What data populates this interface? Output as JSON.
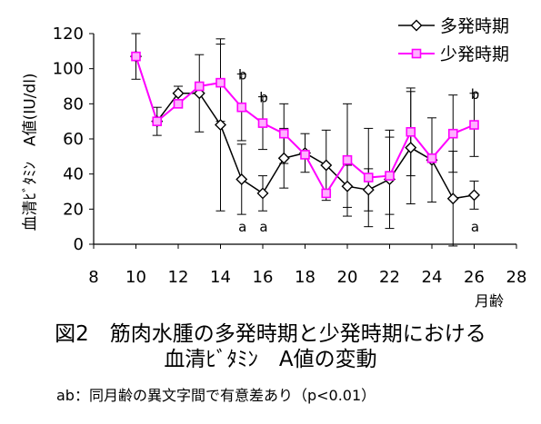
{
  "chart_data": {
    "type": "line",
    "ylabel": "血清ﾋﾞﾀﾐﾝ　A値(IU/dl)",
    "xunit": "月齢",
    "xlim": [
      8,
      28
    ],
    "ylim": [
      0,
      120
    ],
    "xticks": [
      8,
      10,
      12,
      14,
      16,
      18,
      20,
      22,
      24,
      26,
      28
    ],
    "yticks": [
      0,
      20,
      40,
      60,
      80,
      100,
      120
    ],
    "legend": "top-right",
    "series": [
      {
        "name": "多発時期",
        "color": "#000000",
        "marker": "diamond",
        "x": [
          10,
          11,
          12,
          13,
          14,
          15,
          16,
          17,
          18,
          19,
          20,
          21,
          22,
          23,
          24,
          25,
          26
        ],
        "y": [
          107,
          70,
          86,
          86,
          68,
          37,
          29,
          49,
          52,
          45,
          33,
          31,
          37,
          55,
          48,
          26,
          28
        ],
        "err": [
          13,
          8,
          4,
          22,
          49,
          20,
          10,
          17,
          11,
          20,
          12,
          12,
          28,
          32,
          24,
          27,
          8
        ]
      },
      {
        "name": "少発時期",
        "color": "#ff00ff",
        "marker": "square",
        "x": [
          10,
          11,
          12,
          13,
          14,
          15,
          16,
          17,
          18,
          19,
          20,
          21,
          22,
          23,
          24,
          25,
          26
        ],
        "y": [
          107,
          70,
          80,
          90,
          92,
          78,
          69,
          63,
          51,
          29,
          48,
          38,
          39,
          64,
          49,
          63,
          68
        ],
        "err": [
          0,
          0,
          0,
          0,
          22,
          19,
          15,
          17,
          0,
          0,
          32,
          28,
          22,
          25,
          0,
          22,
          18
        ]
      }
    ],
    "annotations": [
      {
        "x": 15,
        "y_above": 98,
        "text": "b",
        "pos": "above"
      },
      {
        "x": 16,
        "y_above": 85,
        "text": "b",
        "pos": "above"
      },
      {
        "x": 26,
        "y_above": 87,
        "text": "b",
        "pos": "above"
      },
      {
        "x": 15,
        "text": "a",
        "pos": "below"
      },
      {
        "x": 16,
        "text": "a",
        "pos": "below"
      },
      {
        "x": 26,
        "text": "a",
        "pos": "below"
      }
    ]
  },
  "caption": {
    "line1": "図2　筋肉水腫の多発時期と少発時期における",
    "line2": "血清ﾋﾞﾀﾐﾝ　A値の変動"
  },
  "note": "ab：同月齢の異文字間で有意差あり（p<0.01）"
}
